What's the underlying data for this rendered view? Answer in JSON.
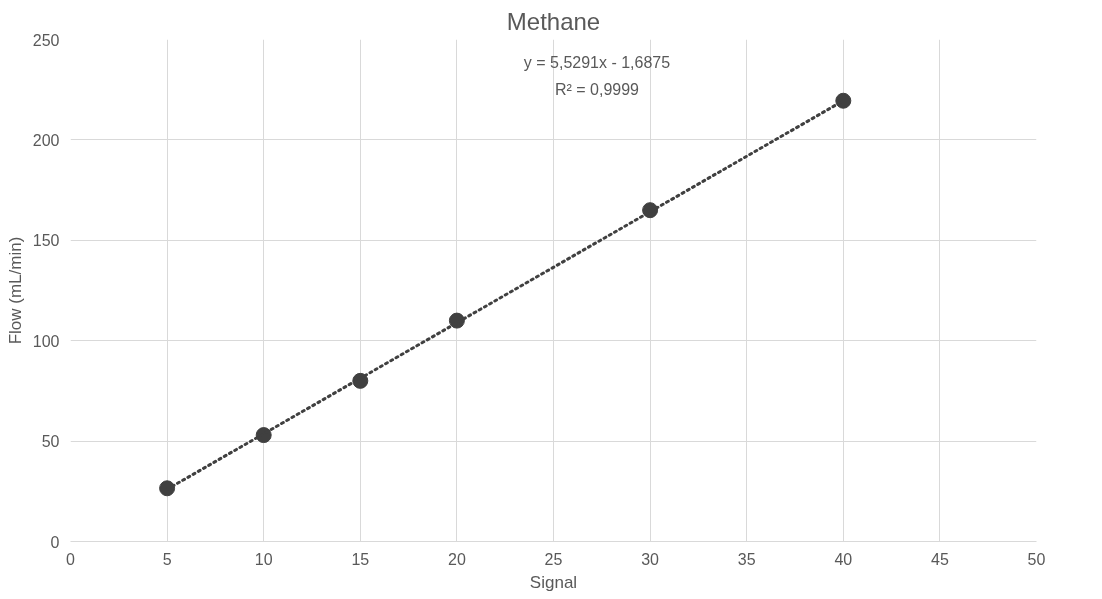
{
  "chart_data": {
    "type": "scatter",
    "title": "Methane",
    "xlabel": "Signal",
    "ylabel": "Flow (mL/min)",
    "xlim": [
      0,
      50
    ],
    "xticks": [
      0,
      5,
      10,
      15,
      20,
      25,
      30,
      35,
      40,
      45,
      50
    ],
    "ylim": [
      0,
      250
    ],
    "yticks": [
      0,
      50,
      100,
      150,
      200,
      250
    ],
    "grid": true,
    "marker": "circle",
    "annotations": [
      "y = 5,5291x - 1,6875",
      "R² = 0,9999"
    ],
    "series": [
      {
        "color": "#404040",
        "x": [
          5,
          10,
          15,
          20,
          30,
          40
        ],
        "values": [
          26.5,
          53,
          80,
          110,
          165,
          219.5
        ]
      },
      {
        "type": "line",
        "color": "#404040",
        "line_style": "dotted",
        "marker": "none",
        "x": [
          5,
          40
        ],
        "values": [
          26,
          219.5
        ]
      }
    ]
  }
}
